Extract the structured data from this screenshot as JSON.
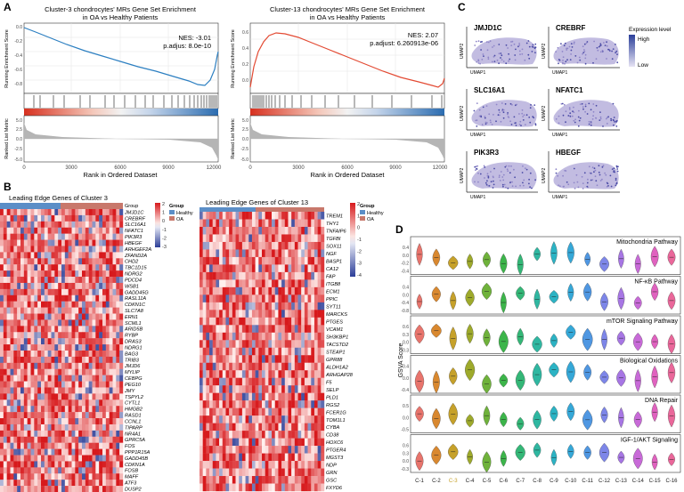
{
  "panels": {
    "A": {
      "label": "A",
      "left": {
        "title_l1": "Cluster-3 chondrocytes' MRs Gene Set Enrichment",
        "title_l2": "in OA vs Healthy Patients",
        "nes": "NES: -3.01",
        "padj": "p.adjus: 8.0e-10",
        "curve_color": "#2c7fc1"
      },
      "right": {
        "title_l1": "Cluster-13 chondrocytes' MRs Gene Set Enrichment",
        "title_l2": "in OA vs Healthy Patients",
        "nes": "NES: 2.07",
        "padj": "p.adjust: 6.260913e-06",
        "curve_color": "#e34a33"
      },
      "ylabel_top": "Running Enrichment Score",
      "ylabel_bottom": "Ranked List Metric",
      "xlabel": "Rank in Ordered Dataset",
      "xticks": [
        "0",
        "3000",
        "6000",
        "9000",
        "12000"
      ],
      "es_ticks": [
        "0.0",
        "-0.2",
        "-0.4",
        "-0.6",
        "-0.8"
      ],
      "es_ticks_right": [
        "0.6",
        "0.4",
        "0.2",
        "0.0"
      ],
      "metric_ticks": [
        "5.0",
        "2.5",
        "0.0",
        "-2.5",
        "-5.0"
      ]
    },
    "B": {
      "label": "B",
      "left_title": "Leading Edge Genes of Cluster 3",
      "right_title": "Leading Edge Genes of Cluster 13",
      "legend_group": "Group",
      "legend_healthy": "Healthy",
      "legend_oa": "OA",
      "colorbar_left": [
        "2",
        "1",
        "0",
        "-1",
        "-2",
        "-3"
      ],
      "colorbar_right": [
        "2",
        "1",
        "0",
        "-1",
        "-2",
        "-3",
        "-4"
      ],
      "genes_left": [
        "JMJD1C",
        "CREBRF",
        "SLC16A1",
        "NFATC1",
        "PIK3R3",
        "HBEGF",
        "ARHGEF2A",
        "ZFAND2A",
        "CHD2",
        "TBC1D15",
        "NDRG2",
        "PDCD4",
        "WSB1",
        "GADD45G",
        "RASL11A",
        "CDKN1C",
        "SLC7A8",
        "ERN1",
        "SCML1",
        "ARID5B",
        "RYBP",
        "DRAS3",
        "NDRG1",
        "BAG3",
        "TRIB3",
        "JMJD6",
        "MYLIP",
        "CEBPG",
        "PEG10",
        "JMY",
        "TSPYL2",
        "CYTL1",
        "HMGB2",
        "RASD1",
        "CCNL1",
        "TIPARP",
        "NR4A1",
        "GPRC5A",
        "FOS",
        "PPP1R15A",
        "GADD45B",
        "CDKN1A",
        "FOSB",
        "MAFF",
        "ATF3",
        "DUSP2"
      ],
      "genes_right": [
        "TREM1",
        "THY1",
        "TNFAIP6",
        "TGFBI",
        "SOX11",
        "NGF",
        "BASP1",
        "CA12",
        "FAP",
        "ITGB8",
        "ECM1",
        "PPIC",
        "SYT11",
        "MARCKS",
        "PTGES",
        "VCAM1",
        "SH3KBP1",
        "TACSTD2",
        "STEAP1",
        "GPR88",
        "ALDH1A2",
        "ARHGAP28",
        "F5",
        "SELP",
        "PLD1",
        "RGS2",
        "FCER1G",
        "TOM1L1",
        "CYBA",
        "CD38",
        "HOXC6",
        "PTGER4",
        "MGST3",
        "NDP",
        "GRN",
        "GSC",
        "FXYD6"
      ]
    },
    "C": {
      "label": "C",
      "genes": [
        "JMJD1C",
        "CREBRF",
        "SLC16A1",
        "NFATC1",
        "PIK3R3",
        "HBEGF"
      ],
      "axis_x": "UMAP1",
      "axis_y": "UMAP2",
      "legend_title": "Expression level",
      "legend_high": "High",
      "legend_low": "Low"
    },
    "D": {
      "label": "D",
      "ylabel": "GSVA Score",
      "pathways": [
        {
          "name": "Mitochondria Pathway",
          "ticks": [
            "0.4",
            "0.0",
            "-0.2",
            "-0.4"
          ]
        },
        {
          "name": "NF-κB Pathway",
          "ticks": [
            "0.4",
            "0.0",
            "-0.4",
            "-0.8"
          ]
        },
        {
          "name": "mTOR Signaling Pathway",
          "ticks": [
            "0.6",
            "0.3",
            "0.0",
            "-0.3"
          ]
        },
        {
          "name": "Biological Oxidations",
          "ticks": [
            "0.4",
            "0.0",
            "-0.4"
          ]
        },
        {
          "name": "DNA Repair",
          "ticks": [
            "0.5",
            "0.0",
            "-0.5"
          ]
        },
        {
          "name": "IGF-1/AKT Signaling",
          "ticks": [
            "0.6",
            "0.3",
            "0.0",
            "-0.3"
          ]
        }
      ],
      "clusters": [
        "C-1",
        "C-2",
        "C-3",
        "C-4",
        "C-5",
        "C-6",
        "C-7",
        "C-8",
        "C-9",
        "C-10",
        "C-11",
        "C-12",
        "C-13",
        "C-14",
        "C-15",
        "C-16"
      ],
      "cluster_colors": [
        "#e8746c",
        "#d9882f",
        "#c6a12a",
        "#9eaa2b",
        "#6fb23b",
        "#3cb54a",
        "#34b777",
        "#2fb7a1",
        "#2cb3c4",
        "#35a8d8",
        "#4f97e2",
        "#7d86e8",
        "#a776e4",
        "#c86ad8",
        "#e062bf",
        "#ea679a"
      ],
      "highlight_index": 2,
      "highlight_color": "#c6a12a"
    }
  }
}
